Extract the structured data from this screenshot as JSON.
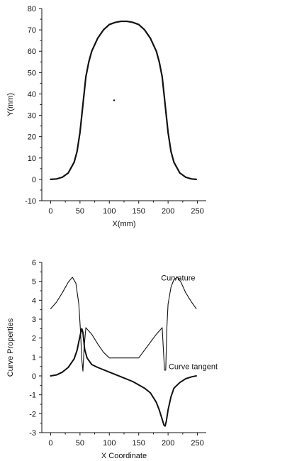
{
  "chart_data": [
    {
      "type": "line",
      "xlabel": "X(mm)",
      "ylabel": "Y(mm)",
      "xlim": [
        -15,
        265
      ],
      "ylim": [
        -10,
        80
      ],
      "xticks": [
        0,
        50,
        100,
        150,
        200,
        250
      ],
      "yticks": [
        -10,
        0,
        10,
        20,
        30,
        40,
        50,
        60,
        70,
        80
      ],
      "grid": false,
      "series": [
        {
          "color": "#111111",
          "width": 2.2,
          "x": [
            0,
            10,
            20,
            30,
            40,
            45,
            50,
            55,
            60,
            65,
            70,
            80,
            90,
            100,
            110,
            120,
            125,
            130,
            140,
            150,
            160,
            170,
            180,
            185,
            190,
            195,
            200,
            205,
            210,
            220,
            230,
            240,
            248
          ],
          "y": [
            0,
            0.2,
            1,
            3,
            8,
            13,
            22,
            35,
            48,
            55,
            60,
            66,
            70,
            72.5,
            73.5,
            74,
            74,
            74,
            73.5,
            72.5,
            70,
            66,
            60,
            55,
            48,
            35,
            22,
            13,
            8,
            3,
            1,
            0.2,
            0
          ]
        }
      ],
      "annotations": [
        {
          "text": "",
          "x": 108,
          "y": 37,
          "kind": "dot"
        }
      ]
    },
    {
      "type": "line",
      "xlabel": "X Coordinate",
      "ylabel": "Curve Properties",
      "xlim": [
        -15,
        265
      ],
      "ylim": [
        -3,
        6
      ],
      "xticks": [
        0,
        50,
        100,
        150,
        200,
        250
      ],
      "yticks": [
        -3,
        -2,
        -1,
        0,
        1,
        2,
        3,
        4,
        5,
        6
      ],
      "grid": false,
      "series": [
        {
          "color": "#555555",
          "width": 1.1,
          "x": [
            0,
            10,
            20,
            30,
            37,
            43,
            48,
            51,
            53,
            55,
            57,
            60,
            70,
            80,
            90,
            100,
            150,
            180,
            190,
            192,
            194,
            196,
            198,
            200,
            205,
            210,
            216,
            222,
            230,
            240,
            248
          ],
          "y": [
            3.55,
            3.9,
            4.4,
            4.95,
            5.22,
            4.9,
            3.8,
            2.3,
            0.9,
            0.25,
            1.5,
            2.55,
            2.2,
            1.7,
            1.25,
            0.95,
            0.95,
            2.2,
            2.55,
            1.4,
            0.3,
            0.3,
            2.6,
            3.8,
            4.7,
            5.1,
            5.22,
            4.95,
            4.4,
            3.9,
            3.55
          ]
        },
        {
          "color": "#111111",
          "width": 2.0,
          "x": [
            0,
            10,
            20,
            30,
            40,
            45,
            50,
            53,
            55,
            58,
            62,
            70,
            80,
            100,
            120,
            140,
            160,
            170,
            180,
            185,
            190,
            193,
            195,
            197,
            200,
            205,
            210,
            220,
            230,
            240,
            248
          ],
          "y": [
            0,
            0.05,
            0.2,
            0.45,
            0.9,
            1.35,
            2.1,
            2.5,
            2.3,
            1.4,
            0.95,
            0.6,
            0.45,
            0.2,
            -0.05,
            -0.3,
            -0.65,
            -0.9,
            -1.4,
            -1.8,
            -2.3,
            -2.6,
            -2.65,
            -2.4,
            -1.8,
            -1.1,
            -0.65,
            -0.35,
            -0.15,
            -0.05,
            0
          ]
        }
      ],
      "annotations": [
        {
          "text": "Curvature",
          "x": 188,
          "y": 5.05
        },
        {
          "text": "Curve tangent",
          "x": 201,
          "y": 0.35
        }
      ]
    }
  ]
}
